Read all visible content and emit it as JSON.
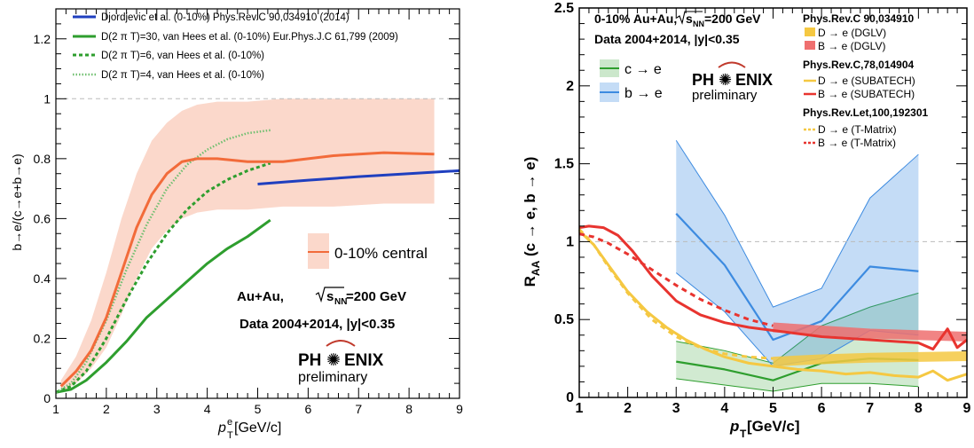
{
  "chart_data": [
    {
      "type": "line",
      "xlabel_main": "p",
      "xlabel_sup": "e",
      "xlabel_sub": "T",
      "xlabel_unit": " [GeV/c]",
      "ylabel": "b→e/(c→e+b→e)",
      "xlim": [
        1,
        9
      ],
      "ylim": [
        0,
        1.3
      ],
      "xticks": [
        "1",
        "2",
        "3",
        "4",
        "5",
        "6",
        "7",
        "8",
        "9"
      ],
      "yticks": [
        "0",
        "0.2",
        "0.4",
        "0.6",
        "0.8",
        "1",
        "1.2"
      ],
      "grid": false,
      "legend_position": "top-left",
      "reference_line": 1.0,
      "series": [
        {
          "name": "Djordjevic et al. (0-10%) Phys.Rev.C 90,034910 (2014)",
          "color": "#1f3fbf",
          "style": "solid",
          "x": [
            5.0,
            6.0,
            7.0,
            8.0,
            9.0
          ],
          "y": [
            0.715,
            0.728,
            0.74,
            0.75,
            0.76
          ]
        },
        {
          "name": "D(2 π T)=30, van Hees et al. (0-10%) Eur.Phys.J.C 61,799 (2009)",
          "color": "#2e9e2e",
          "style": "solid",
          "x": [
            1.0,
            1.3,
            1.6,
            2.0,
            2.4,
            2.8,
            3.2,
            3.6,
            4.0,
            4.4,
            4.8,
            5.25
          ],
          "y": [
            0.02,
            0.03,
            0.06,
            0.12,
            0.19,
            0.27,
            0.33,
            0.39,
            0.45,
            0.5,
            0.54,
            0.595
          ]
        },
        {
          "name": "D(2 π T)=6, van Hees et al. (0-10%)",
          "color": "#2e9e2e",
          "style": "dashed",
          "x": [
            1.0,
            1.3,
            1.6,
            2.0,
            2.4,
            2.8,
            3.2,
            3.6,
            4.0,
            4.4,
            4.8,
            5.25
          ],
          "y": [
            0.02,
            0.04,
            0.09,
            0.2,
            0.33,
            0.45,
            0.55,
            0.63,
            0.69,
            0.73,
            0.76,
            0.785
          ]
        },
        {
          "name": "D(2 π T)=4, van Hees et al. (0-10%)",
          "color": "#6fbf6f",
          "style": "dotted",
          "x": [
            1.0,
            1.3,
            1.6,
            2.0,
            2.4,
            2.8,
            3.2,
            3.6,
            4.0,
            4.4,
            4.8,
            5.25
          ],
          "y": [
            0.02,
            0.05,
            0.12,
            0.26,
            0.43,
            0.58,
            0.7,
            0.78,
            0.83,
            0.865,
            0.885,
            0.895
          ]
        },
        {
          "name": "0-10% central",
          "color": "#f26b3a",
          "style": "solid",
          "x": [
            1.1,
            1.4,
            1.7,
            2.0,
            2.3,
            2.6,
            2.9,
            3.2,
            3.5,
            3.8,
            4.2,
            4.8,
            5.5,
            6.5,
            7.5,
            8.5
          ],
          "y": [
            0.04,
            0.09,
            0.16,
            0.27,
            0.42,
            0.57,
            0.68,
            0.75,
            0.79,
            0.8,
            0.8,
            0.79,
            0.79,
            0.81,
            0.82,
            0.815
          ],
          "band_low": [
            0.02,
            0.05,
            0.1,
            0.17,
            0.28,
            0.4,
            0.5,
            0.56,
            0.6,
            0.62,
            0.63,
            0.63,
            0.64,
            0.64,
            0.65,
            0.65
          ],
          "band_high": [
            0.06,
            0.14,
            0.26,
            0.42,
            0.6,
            0.75,
            0.86,
            0.92,
            0.96,
            0.98,
            0.99,
            0.99,
            1.0,
            1.0,
            1.0,
            1.0
          ]
        }
      ],
      "legend_box_label": "0-10% central",
      "annotation_system": "Au+Au,",
      "annotation_sqrt": "s",
      "annotation_sub": "NN",
      "annotation_energy": "=200 GeV",
      "annotation_data": "Data 2004+2014, |y|<0.35",
      "logo_left": "PH",
      "logo_right": "ENIX",
      "logo_sub": "preliminary"
    },
    {
      "type": "line",
      "xlabel_main": "p",
      "xlabel_sub": "T",
      "xlabel_unit": " [GeV/c]",
      "ylabel_main": "R",
      "ylabel_sub": "AA",
      "ylabel_rest": " (c → e, b → e)",
      "xlim": [
        1,
        9
      ],
      "ylim": [
        0,
        2.5
      ],
      "xticks": [
        "1",
        "2",
        "3",
        "4",
        "5",
        "6",
        "7",
        "8",
        "9"
      ],
      "yticks": [
        "0",
        "0.5",
        "1",
        "1.5",
        "2",
        "2.5"
      ],
      "grid": false,
      "legend_position": "top",
      "reference_line": 1.0,
      "series": [
        {
          "name": "c → e",
          "color": "#2e9e2e",
          "band_color": "#2e9e2e",
          "x": [
            3.0,
            4.0,
            5.0,
            6.0,
            7.0,
            8.0
          ],
          "y": [
            0.23,
            0.18,
            0.11,
            0.22,
            0.25,
            0.24
          ],
          "band_low": [
            0.12,
            0.08,
            0.04,
            0.09,
            0.09,
            0.07
          ],
          "band_high": [
            0.36,
            0.3,
            0.22,
            0.46,
            0.58,
            0.67
          ]
        },
        {
          "name": "b → e",
          "color": "#3d8be0",
          "band_color": "#3d8be0",
          "x": [
            3.0,
            4.0,
            5.0,
            6.0,
            7.0,
            8.0
          ],
          "y": [
            1.18,
            0.85,
            0.37,
            0.49,
            0.84,
            0.81
          ],
          "band_low": [
            0.8,
            0.55,
            0.2,
            0.25,
            0.43,
            0.4
          ],
          "band_high": [
            1.65,
            1.17,
            0.58,
            0.7,
            1.28,
            1.56
          ]
        },
        {
          "name": "D → e (DGLV)",
          "color": "#f5c842",
          "style": "band",
          "x": [
            5.0,
            6.0,
            7.0,
            8.0,
            9.0
          ],
          "y": [
            0.23,
            0.245,
            0.255,
            0.26,
            0.265
          ]
        },
        {
          "name": "B → e (DGLV)",
          "color": "#ef6f6f",
          "style": "band",
          "x": [
            5.0,
            6.0,
            7.0,
            8.0,
            9.0
          ],
          "y": [
            0.45,
            0.43,
            0.41,
            0.4,
            0.39
          ]
        },
        {
          "name": "D → e (SUBATECH)",
          "color": "#f5c842",
          "style": "solid",
          "x": [
            1.0,
            1.3,
            1.6,
            2.0,
            2.4,
            2.8,
            3.2,
            3.6,
            4.0,
            4.5,
            5.0,
            5.5,
            6.0,
            6.5,
            7.0,
            7.5,
            8.0,
            8.3,
            8.6,
            9.0
          ],
          "y": [
            1.07,
            0.98,
            0.85,
            0.68,
            0.55,
            0.45,
            0.37,
            0.31,
            0.26,
            0.22,
            0.2,
            0.18,
            0.17,
            0.15,
            0.16,
            0.14,
            0.13,
            0.17,
            0.11,
            0.15
          ]
        },
        {
          "name": "B → e (SUBATECH)",
          "color": "#e8342f",
          "style": "solid",
          "x": [
            1.0,
            1.2,
            1.5,
            1.8,
            2.1,
            2.5,
            3.0,
            3.5,
            4.0,
            4.5,
            5.0,
            5.5,
            6.0,
            7.0,
            8.0,
            8.3,
            8.6,
            8.8,
            9.0
          ],
          "y": [
            1.09,
            1.1,
            1.09,
            1.04,
            0.94,
            0.78,
            0.62,
            0.53,
            0.48,
            0.45,
            0.43,
            0.41,
            0.39,
            0.37,
            0.35,
            0.31,
            0.44,
            0.32,
            0.37
          ]
        },
        {
          "name": "D → e (T-Matrix)",
          "color": "#f5c842",
          "style": "dashed",
          "x": [
            1.0,
            1.3,
            1.6,
            2.0,
            2.5,
            3.0,
            3.5,
            4.0,
            4.5,
            5.0
          ],
          "y": [
            1.08,
            0.98,
            0.84,
            0.67,
            0.5,
            0.39,
            0.32,
            0.28,
            0.26,
            0.25
          ]
        },
        {
          "name": "B → e (T-Matrix)",
          "color": "#e8342f",
          "style": "dashed",
          "x": [
            1.0,
            1.3,
            1.6,
            2.0,
            2.5,
            3.0,
            3.5,
            4.0,
            4.5,
            5.0
          ],
          "y": [
            1.05,
            1.03,
            0.99,
            0.92,
            0.82,
            0.72,
            0.63,
            0.56,
            0.5,
            0.46
          ]
        }
      ],
      "annotation_system": "0-10% Au+Au,",
      "annotation_sqrt": "s",
      "annotation_sub": "NN",
      "annotation_energy": "=200 GeV",
      "annotation_data": "Data 2004+2014, |y|<0.35",
      "ref_dglv": "Phys.Rev.C 90,034910",
      "ref_subatech": "Phys.Rev.C,78,014904",
      "ref_tmatrix": "Phys.Rev.Let,100,192301",
      "logo_left": "PH",
      "logo_right": "ENIX",
      "logo_sub": "preliminary"
    }
  ]
}
